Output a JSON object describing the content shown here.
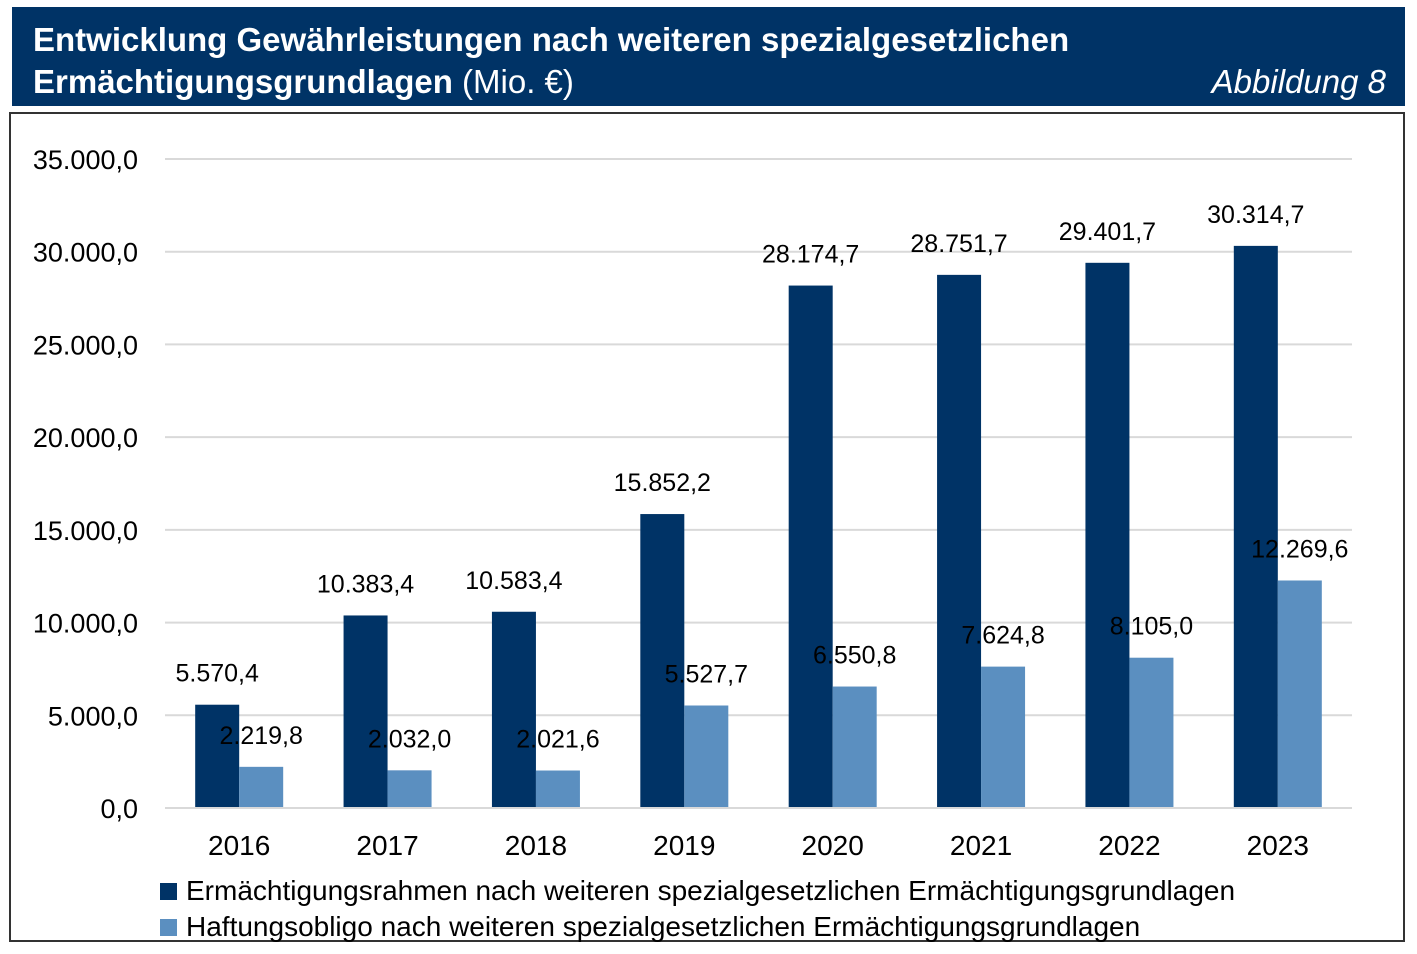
{
  "header": {
    "title_line1": "Entwicklung Gewährleistungen nach weiteren spezialgesetzlichen",
    "title_line2_bold": "Ermächtigungsgrundlagen",
    "title_line2_unit": " (Mio. €)",
    "figure_label": "Abbildung 8"
  },
  "colors": {
    "header_bg": "#003366",
    "series_dark": "#003366",
    "series_light": "#5B8FC0",
    "grid": "#D9D9D9"
  },
  "chart_data": {
    "type": "bar",
    "title": "Entwicklung Gewährleistungen nach weiteren spezialgesetzlichen Ermächtigungsgrundlagen (Mio. €)",
    "xlabel": "",
    "ylabel": "",
    "categories": [
      "2016",
      "2017",
      "2018",
      "2019",
      "2020",
      "2021",
      "2022",
      "2023"
    ],
    "ylim": [
      0,
      35000
    ],
    "yticks": [
      0,
      5000,
      10000,
      15000,
      20000,
      25000,
      30000,
      35000
    ],
    "ytick_labels": [
      "0,0",
      "5.000,0",
      "10.000,0",
      "15.000,0",
      "20.000,0",
      "25.000,0",
      "30.000,0",
      "35.000,0"
    ],
    "grid": true,
    "legend_position": "bottom",
    "series": [
      {
        "name": "Ermächtigungsrahmen nach weiteren spezialgesetzlichen Ermächtigungsgrundlagen",
        "color": "#003366",
        "values": [
          5570.4,
          10383.4,
          10583.4,
          15852.2,
          28174.7,
          28751.7,
          29401.7,
          30314.7
        ],
        "labels": [
          "5.570,4",
          "10.383,4",
          "10.583,4",
          "15.852,2",
          "28.174,7",
          "28.751,7",
          "29.401,7",
          "30.314,7"
        ]
      },
      {
        "name": "Haftungsobligo nach weiteren spezialgesetzlichen Ermächtigungsgrundlagen",
        "color": "#5B8FC0",
        "values": [
          2219.8,
          2032.0,
          2021.6,
          5527.7,
          6550.8,
          7624.8,
          8105.0,
          12269.6
        ],
        "labels": [
          "2.219,8",
          "2.032,0",
          "2.021,6",
          "5.527,7",
          "6.550,8",
          "7.624,8",
          "8.105,0",
          "12.269,6"
        ]
      }
    ]
  }
}
